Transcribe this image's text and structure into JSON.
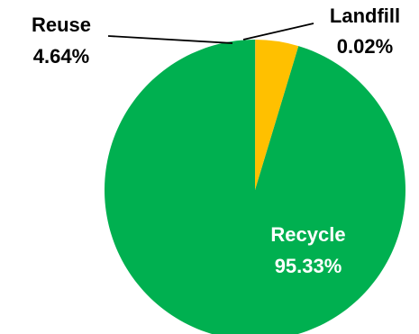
{
  "chart_data": {
    "type": "pie",
    "title": "",
    "start_angle_deg": 0,
    "direction": "counterclockwise",
    "slices": [
      {
        "name": "Recycle",
        "value": 95.33,
        "label": "95.33%",
        "color": "#00b050"
      },
      {
        "name": "Reuse",
        "value": 4.64,
        "label": "4.64%",
        "color": "#ffc000"
      },
      {
        "name": "Landfill",
        "value": 0.02,
        "label": "0.02%",
        "color": "#7f7f7f"
      }
    ],
    "legend": "none",
    "label_style": {
      "inside_text_color": "#ffffff",
      "outside_text_color": "#000000",
      "leader_line_color": "#000000"
    }
  }
}
